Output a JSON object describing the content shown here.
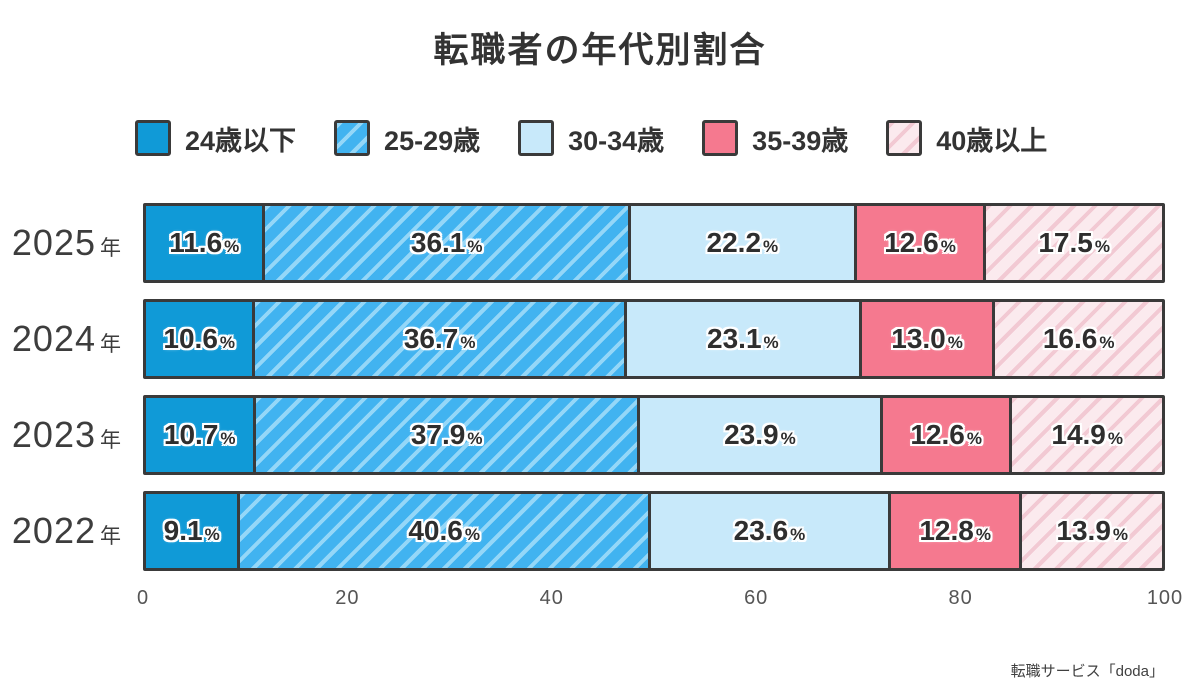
{
  "title": "転職者の年代別割合",
  "source": "転職サービス「doda」",
  "chart_data": {
    "type": "bar",
    "orientation": "horizontal",
    "stacked": true,
    "unit": "%",
    "title": "転職者の年代別割合",
    "categories": [
      "2025年",
      "2024年",
      "2023年",
      "2022年"
    ],
    "series": [
      {
        "name": "24歳以下",
        "style": "solid",
        "color": "#109ad7",
        "values": [
          11.6,
          10.6,
          10.7,
          9.1
        ]
      },
      {
        "name": "25-29歳",
        "style": "hatched",
        "color": "#41b3f0",
        "hatch_color": "#94d7f8",
        "values": [
          36.1,
          36.7,
          37.9,
          40.6
        ]
      },
      {
        "name": "30-34歳",
        "style": "solid",
        "color": "#c8e9fa",
        "values": [
          22.2,
          23.1,
          23.9,
          23.6
        ]
      },
      {
        "name": "35-39歳",
        "style": "solid",
        "color": "#f5798f",
        "values": [
          12.6,
          13.0,
          12.6,
          12.8
        ]
      },
      {
        "name": "40歳以上",
        "style": "hatched",
        "color": "#fbeaee",
        "hatch_color": "#f2c9d3",
        "values": [
          17.5,
          16.6,
          14.9,
          13.9
        ]
      }
    ],
    "xlabel": "",
    "ylabel": "",
    "xlim": [
      0,
      100
    ],
    "x_ticks": [
      0,
      20,
      40,
      60,
      80,
      100
    ],
    "legend_position": "top",
    "grid": false,
    "bar_border_color": "#3a3a3a",
    "label_text_color": "#2e2e2e"
  }
}
